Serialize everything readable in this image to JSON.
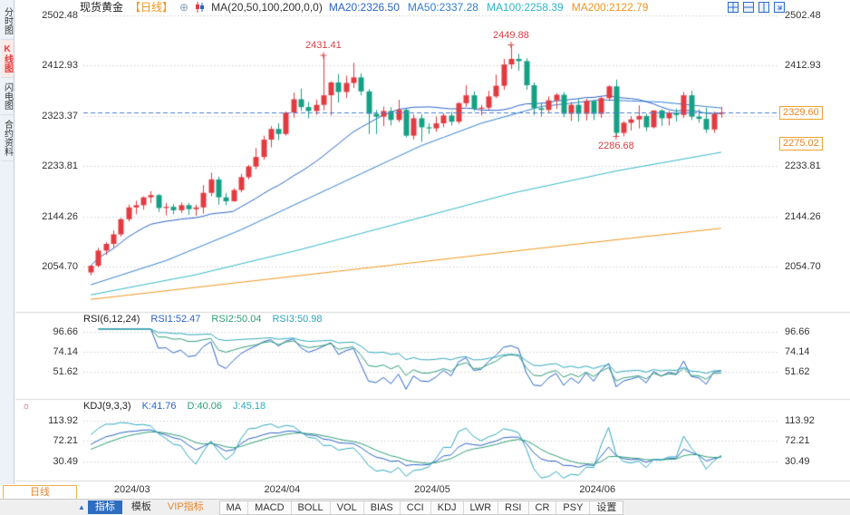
{
  "header": {
    "title": "现货黄金",
    "period_label": "【日线】",
    "ma_formula": "MA(20,50,100,200,0,0)",
    "ma_legend": [
      {
        "label": "MA20:2326.50",
        "color": "#2a63c8"
      },
      {
        "label": "MA50:2337.28",
        "color": "#2f7fd0"
      },
      {
        "label": "MA100:2258.39",
        "color": "#2fb6c9"
      },
      {
        "label": "MA200:2122.79",
        "color": "#f0961e"
      }
    ]
  },
  "sidebar": {
    "items": [
      {
        "label": "分时图",
        "name": "time-chart",
        "active": false
      },
      {
        "label": "K线图",
        "name": "kline-chart",
        "active": true
      },
      {
        "label": "闪电图",
        "name": "lightning-chart",
        "active": false
      },
      {
        "label": "合约资料",
        "name": "contract-info",
        "active": false
      }
    ]
  },
  "price_axis_labels": [
    "2502.48",
    "2412.93",
    "2323.37",
    "2233.81",
    "2144.26",
    "2054.70"
  ],
  "price_tags": [
    {
      "label": "2329.60",
      "value": 2329.6
    },
    {
      "label": "2275.02",
      "value": 2275.02
    }
  ],
  "rsi_panel": {
    "formula": "RSI(6,12,24)",
    "legend": [
      {
        "label": "RSI1:52.47",
        "color": "#2a63c8"
      },
      {
        "label": "RSI2:50.04",
        "color": "#2e9e77"
      },
      {
        "label": "RSI3:50.98",
        "color": "#2fa8bd"
      }
    ],
    "axis_labels": [
      "96.66",
      "74.14",
      "51.62"
    ]
  },
  "kdj_panel": {
    "formula": "KDJ(9,3,3)",
    "legend": [
      {
        "label": "K:41.76",
        "color": "#2a63c8"
      },
      {
        "label": "D:40.06",
        "color": "#2e9e77"
      },
      {
        "label": "J:45.18",
        "color": "#2fa8bd"
      }
    ],
    "axis_labels": [
      "113.92",
      "72.21",
      "30.49"
    ]
  },
  "xaxis_labels": [
    "2024/03",
    "2024/04",
    "2024/05",
    "2024/06"
  ],
  "footer": {
    "period_tab": "日线",
    "indicator_menu": [
      {
        "label": "指标",
        "name": "indicators",
        "style": "primary"
      },
      {
        "label": "模板",
        "name": "templates",
        "style": "normal"
      },
      {
        "label": "VIP指标",
        "name": "vip-indicators",
        "style": "vip"
      }
    ],
    "indicator_tabs": [
      "MA",
      "MACD",
      "BOLL",
      "VOL",
      "BIAS",
      "CCI",
      "KDJ",
      "LWR",
      "RSI",
      "CR",
      "PSY"
    ],
    "settings_tab": "设置"
  },
  "chart_data": {
    "type": "candlestick",
    "title": "现货黄金 日线",
    "price_gridlines": [
      2502.48,
      2412.93,
      2323.37,
      2233.81,
      2144.26,
      2054.7
    ],
    "current_price": 2329.6,
    "marked_price": 2275.02,
    "annotations": [
      {
        "label": "2431.41",
        "index": 31,
        "price": 2431.41,
        "position": "above"
      },
      {
        "label": "2449.88",
        "index": 56,
        "price": 2449.88,
        "position": "above"
      },
      {
        "label": "2286.68",
        "index": 70,
        "price": 2286.68,
        "position": "below"
      }
    ],
    "x_labels": [
      {
        "text": "2024/03",
        "index": 6
      },
      {
        "text": "2024/04",
        "index": 26
      },
      {
        "text": "2024/05",
        "index": 46
      },
      {
        "text": "2024/06",
        "index": 68
      }
    ],
    "colors": {
      "up": "#e23b41",
      "down": "#16a085",
      "grid": "#cfcfcf",
      "dashed_line": "#4a7fd6",
      "annotation": "#d94046"
    },
    "candles": [
      [
        2044,
        2057,
        2039,
        2056
      ],
      [
        2056,
        2088,
        2053,
        2083
      ],
      [
        2083,
        2098,
        2075,
        2095
      ],
      [
        2095,
        2119,
        2088,
        2112
      ],
      [
        2112,
        2141,
        2108,
        2139
      ],
      [
        2139,
        2165,
        2135,
        2160
      ],
      [
        2160,
        2172,
        2148,
        2164
      ],
      [
        2164,
        2180,
        2156,
        2178
      ],
      [
        2178,
        2189,
        2168,
        2182
      ],
      [
        2182,
        2184,
        2152,
        2159
      ],
      [
        2159,
        2168,
        2146,
        2161
      ],
      [
        2161,
        2166,
        2148,
        2155
      ],
      [
        2155,
        2169,
        2150,
        2164
      ],
      [
        2164,
        2168,
        2147,
        2157
      ],
      [
        2157,
        2165,
        2145,
        2160
      ],
      [
        2160,
        2200,
        2149,
        2186
      ],
      [
        2186,
        2222,
        2180,
        2210
      ],
      [
        2210,
        2215,
        2165,
        2178
      ],
      [
        2178,
        2186,
        2164,
        2171
      ],
      [
        2171,
        2194,
        2170,
        2191
      ],
      [
        2191,
        2220,
        2187,
        2214
      ],
      [
        2214,
        2236,
        2210,
        2233
      ],
      [
        2233,
        2266,
        2228,
        2250
      ],
      [
        2250,
        2288,
        2245,
        2281
      ],
      [
        2281,
        2305,
        2267,
        2300
      ],
      [
        2300,
        2310,
        2280,
        2291
      ],
      [
        2291,
        2331,
        2288,
        2329
      ],
      [
        2329,
        2365,
        2320,
        2353
      ],
      [
        2353,
        2372,
        2332,
        2339
      ],
      [
        2339,
        2348,
        2319,
        2332
      ],
      [
        2332,
        2352,
        2325,
        2343
      ],
      [
        2343,
        2431.41,
        2333,
        2360
      ],
      [
        2360,
        2385,
        2324,
        2383
      ],
      [
        2383,
        2398,
        2347,
        2366
      ],
      [
        2366,
        2395,
        2355,
        2382
      ],
      [
        2382,
        2418,
        2373,
        2392
      ],
      [
        2392,
        2399,
        2360,
        2367
      ],
      [
        2367,
        2371,
        2291,
        2327
      ],
      [
        2327,
        2334,
        2291,
        2322
      ],
      [
        2322,
        2340,
        2305,
        2332
      ],
      [
        2332,
        2339,
        2306,
        2316
      ],
      [
        2316,
        2352,
        2312,
        2334
      ],
      [
        2334,
        2336,
        2285,
        2288
      ],
      [
        2288,
        2326,
        2281,
        2319
      ],
      [
        2319,
        2326,
        2277,
        2303
      ],
      [
        2303,
        2310,
        2291,
        2301
      ],
      [
        2301,
        2322,
        2295,
        2310
      ],
      [
        2310,
        2328,
        2303,
        2324
      ],
      [
        2324,
        2331,
        2306,
        2313
      ],
      [
        2313,
        2348,
        2309,
        2346
      ],
      [
        2346,
        2378,
        2340,
        2360
      ],
      [
        2360,
        2367,
        2332,
        2336
      ],
      [
        2336,
        2343,
        2324,
        2338
      ],
      [
        2338,
        2368,
        2334,
        2358
      ],
      [
        2358,
        2397,
        2355,
        2377
      ],
      [
        2377,
        2425,
        2370,
        2415
      ],
      [
        2415,
        2449.88,
        2407,
        2425
      ],
      [
        2425,
        2434,
        2404,
        2421
      ],
      [
        2421,
        2426,
        2370,
        2378
      ],
      [
        2378,
        2383,
        2325,
        2337
      ],
      [
        2337,
        2347,
        2322,
        2334
      ],
      [
        2334,
        2358,
        2330,
        2351
      ],
      [
        2351,
        2364,
        2336,
        2361
      ],
      [
        2361,
        2366,
        2321,
        2327
      ],
      [
        2327,
        2348,
        2314,
        2343
      ],
      [
        2343,
        2354,
        2313,
        2327
      ],
      [
        2327,
        2354,
        2315,
        2350
      ],
      [
        2350,
        2352,
        2316,
        2327
      ],
      [
        2327,
        2358,
        2320,
        2355
      ],
      [
        2355,
        2378,
        2350,
        2376
      ],
      [
        2376,
        2388,
        2286.68,
        2293
      ],
      [
        2293,
        2314,
        2287,
        2311
      ],
      [
        2311,
        2323,
        2297,
        2317
      ],
      [
        2317,
        2342,
        2301,
        2323
      ],
      [
        2323,
        2327,
        2296,
        2303
      ],
      [
        2303,
        2333,
        2301,
        2333
      ],
      [
        2333,
        2335,
        2305,
        2319
      ],
      [
        2319,
        2332,
        2306,
        2329
      ],
      [
        2329,
        2336,
        2313,
        2325
      ],
      [
        2325,
        2366,
        2320,
        2360
      ],
      [
        2360,
        2368,
        2316,
        2322
      ],
      [
        2322,
        2335,
        2311,
        2318
      ],
      [
        2318,
        2338,
        2293,
        2299
      ],
      [
        2299,
        2331,
        2293,
        2327
      ],
      [
        2327,
        2339.5,
        2320,
        2329.6
      ]
    ],
    "ma": {
      "ma20": {
        "period": 20,
        "last": 2326.5,
        "color": "#2a63c8",
        "compute": true
      },
      "ma50": {
        "last": 2337.28,
        "color": "#2f7fd0",
        "anchors": [
          [
            0,
            2022
          ],
          [
            10,
            2065
          ],
          [
            20,
            2120
          ],
          [
            28,
            2170
          ],
          [
            36,
            2220
          ],
          [
            44,
            2270
          ],
          [
            52,
            2310
          ],
          [
            60,
            2340
          ],
          [
            68,
            2352
          ],
          [
            76,
            2348
          ],
          [
            84,
            2337.28
          ]
        ]
      },
      "ma100": {
        "last": 2258.39,
        "color": "#2fb6c9",
        "anchors": [
          [
            0,
            2004
          ],
          [
            14,
            2040
          ],
          [
            28,
            2085
          ],
          [
            42,
            2135
          ],
          [
            56,
            2185
          ],
          [
            70,
            2225
          ],
          [
            84,
            2258.39
          ]
        ]
      },
      "ma200": {
        "last": 2122.79,
        "color": "#f0961e",
        "anchors": [
          [
            0,
            1996
          ],
          [
            21,
            2028
          ],
          [
            42,
            2060
          ],
          [
            63,
            2092
          ],
          [
            84,
            2122.79
          ]
        ]
      }
    },
    "rsi": {
      "periods": [
        6,
        12,
        24
      ],
      "gridlines": [
        96.66,
        74.14,
        51.62
      ],
      "last": [
        52.47,
        50.04,
        50.98
      ],
      "colors": [
        "#2a63c8",
        "#2e9e77",
        "#2fa8bd"
      ]
    },
    "kdj": {
      "params": [
        9,
        3,
        3
      ],
      "gridlines": [
        113.92,
        72.21,
        30.49
      ],
      "last": [
        41.76,
        40.06,
        45.18
      ],
      "colors": [
        "#2a63c8",
        "#2e9e77",
        "#2fa8bd"
      ]
    }
  }
}
